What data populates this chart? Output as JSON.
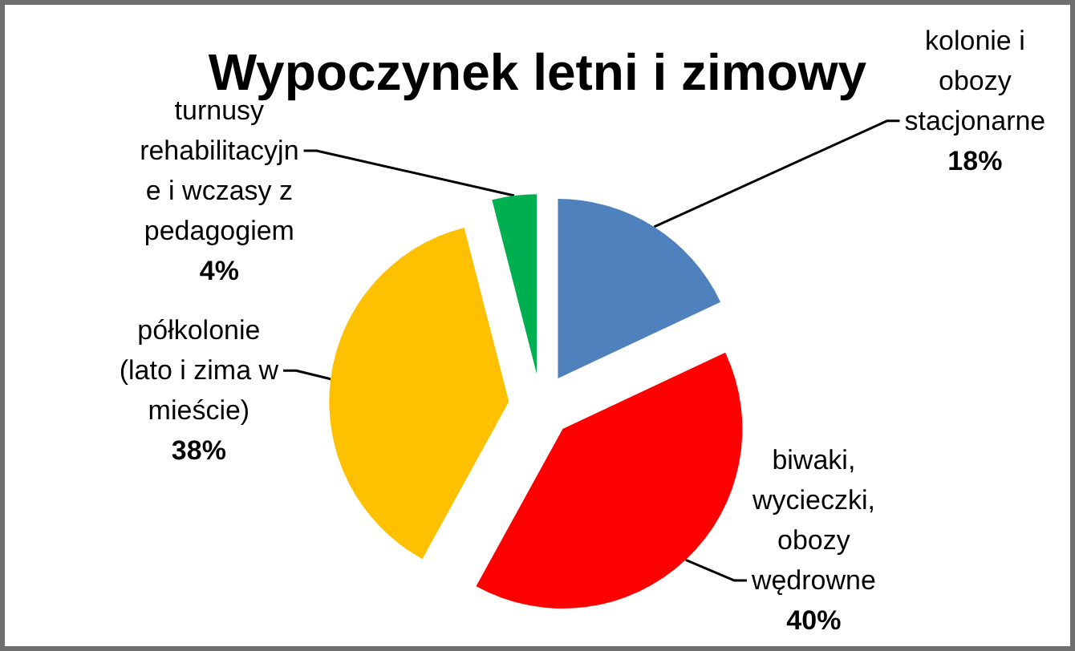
{
  "chart_data": {
    "type": "pie",
    "title": "Wypoczynek letni i zimowy",
    "categories": [
      "kolonie i obozy stacjonarne",
      "biwaki, wycieczki, obozy wędrowne",
      "półkolonie (lato i zima w mieście)",
      "turnusy rehabilitacyjne i wczasy z pedagogiem"
    ],
    "values": [
      18,
      40,
      38,
      4
    ],
    "colors": [
      "#4f81bd",
      "#ff0000",
      "#ffc000",
      "#00b050"
    ],
    "value_labels": [
      "18%",
      "40%",
      "38%",
      "4%"
    ]
  }
}
